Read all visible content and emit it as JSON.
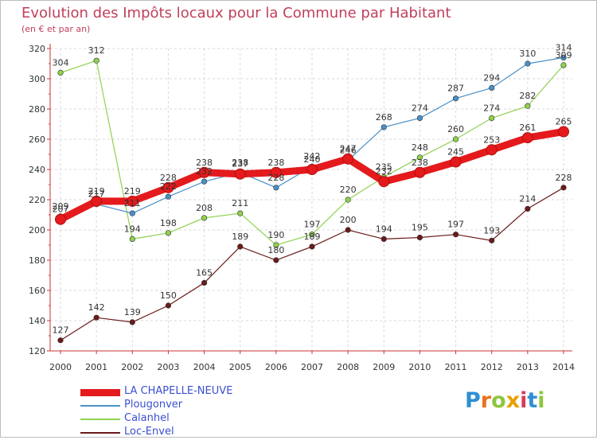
{
  "title": "Evolution des Impôts locaux pour la Commune par Habitant",
  "subtitle": "(en € et par an)",
  "logo": {
    "letters": [
      "P",
      "r",
      "o",
      "x",
      "i",
      "t",
      "i"
    ],
    "colors": [
      "#2f8fd4",
      "#e9731f",
      "#8dc63f",
      "#e8a000",
      "#d93b57",
      "#2f8fd4",
      "#8dc63f"
    ]
  },
  "chart_data": {
    "type": "line",
    "x": [
      2000,
      2001,
      2002,
      2003,
      2004,
      2005,
      2006,
      2007,
      2008,
      2009,
      2010,
      2011,
      2012,
      2013,
      2014
    ],
    "ylim": [
      120,
      320
    ],
    "yticks": [
      120,
      140,
      160,
      180,
      200,
      220,
      240,
      260,
      280,
      300,
      320
    ],
    "grid": true,
    "legend_position": "bottom-left",
    "series": [
      {
        "name": "LA CHAPELLE-NEUVE",
        "color": "#e41a1c",
        "values": [
          207,
          219,
          219,
          228,
          238,
          237,
          238,
          240,
          247,
          232,
          238,
          245,
          253,
          261,
          265
        ]
      },
      {
        "name": "Plougonver",
        "color": "#4a90c8",
        "values": [
          209,
          217,
          211,
          222,
          232,
          238,
          228,
          242,
          246,
          268,
          274,
          287,
          294,
          310,
          314
        ]
      },
      {
        "name": "Calanhel",
        "color": "#8fd14f",
        "values": [
          304,
          312,
          194,
          198,
          208,
          211,
          190,
          197,
          220,
          235,
          248,
          260,
          274,
          282,
          309
        ]
      },
      {
        "name": "Loc-Envel",
        "color": "#6b1a1a",
        "values": [
          127,
          142,
          139,
          150,
          165,
          189,
          180,
          189,
          200,
          194,
          195,
          197,
          193,
          214,
          228
        ]
      }
    ]
  }
}
